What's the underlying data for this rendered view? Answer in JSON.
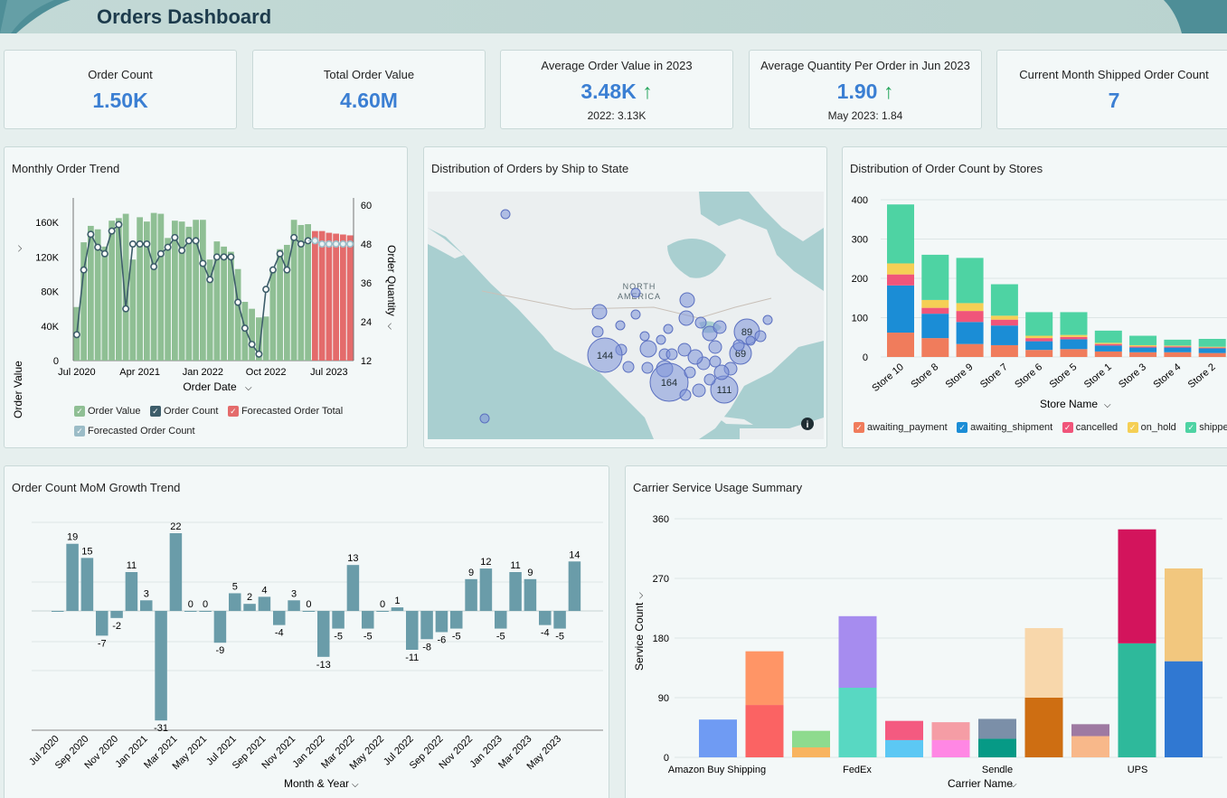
{
  "header": {
    "title": "Orders Dashboard"
  },
  "kpis": [
    {
      "label": "Order Count",
      "value": "1.50K"
    },
    {
      "label": "Total Order Value",
      "value": "4.60M"
    },
    {
      "label": "Average Order Value in 2023",
      "value": "3.48K",
      "trend": "↑",
      "comparison": "2022: 3.13K"
    },
    {
      "label": "Average Quantity Per Order in Jun 2023",
      "value": "1.90",
      "trend": "↑",
      "comparison": "May 2023: 1.84"
    },
    {
      "label": "Current Month Shipped Order Count",
      "value": "7"
    }
  ],
  "monthly": {
    "title": "Monthly Order Trend",
    "xlabel": "Order Date",
    "ylabel_left": "Order Value",
    "ylabel_right": "Order Quantity",
    "chevron": "⌵",
    "legend": [
      {
        "label": "Order Value",
        "color": "#8fbf94"
      },
      {
        "label": "Order Count",
        "color": "#3d5d6a"
      },
      {
        "label": "Forecasted Order Total",
        "color": "#e46b6b"
      },
      {
        "label": "Forecasted Order Count",
        "color": "#9bbcc7"
      }
    ]
  },
  "map": {
    "title": "Distribution of Orders by Ship to State",
    "region_label_1": "NORTH",
    "region_label_2": "AMERICA",
    "bubble_labels": [
      "144",
      "164",
      "111",
      "89",
      "69"
    ],
    "info_icon": "i"
  },
  "stores": {
    "title": "Distribution of Order Count by Stores",
    "xlabel": "Store Name",
    "legend": [
      {
        "label": "awaiting_payment",
        "color": "#f07c5c"
      },
      {
        "label": "awaiting_shipment",
        "color": "#1b8dd6"
      },
      {
        "label": "cancelled",
        "color": "#f0557a"
      },
      {
        "label": "on_hold",
        "color": "#f5cf55"
      },
      {
        "label": "shipped",
        "color": "#4ed3a3"
      }
    ]
  },
  "mom": {
    "title": "Order Count MoM Growth Trend",
    "xlabel": "Month & Year"
  },
  "carrier": {
    "title": "Carrier Service Usage Summary",
    "xlabel": "Carrier Name",
    "ylabel": "Service Count"
  },
  "chart_data": [
    {
      "type": "bar+line",
      "title": "Monthly Order Trend",
      "xlabel": "Order Date",
      "ylabel": "Order Value",
      "y2label": "Order Quantity",
      "ylim": [
        0,
        180000
      ],
      "y2lim": [
        12,
        60
      ],
      "y_ticks": [
        "0",
        "40K",
        "80K",
        "120K",
        "160K"
      ],
      "y2_ticks": [
        "12",
        "24",
        "36",
        "48",
        "60"
      ],
      "x_ticks": [
        "Jul 2020",
        "Apr 2021",
        "Jan 2022",
        "Oct 2022",
        "Jul 2023"
      ],
      "order_value": [
        62000,
        137000,
        156000,
        152000,
        132000,
        162000,
        165000,
        170000,
        117000,
        166000,
        161000,
        171000,
        170000,
        142000,
        162000,
        161000,
        155000,
        163000,
        163000,
        117000,
        138000,
        132000,
        126000,
        106000,
        68000,
        60000,
        50000,
        51000,
        104000,
        129000,
        134000,
        163000,
        157000,
        158000
      ],
      "order_count": [
        20,
        40,
        51,
        47,
        45,
        52,
        54,
        28,
        48,
        48,
        48,
        41,
        45,
        47,
        50,
        46,
        49,
        49,
        42,
        37,
        44,
        44,
        44,
        30,
        22,
        17,
        14,
        34,
        40,
        45,
        40,
        50,
        48,
        49
      ],
      "forecast_value": [
        150000,
        150000,
        148000,
        147000,
        146000,
        145000
      ],
      "forecast_count": [
        49,
        48,
        48,
        48,
        48,
        48
      ]
    },
    {
      "type": "bar",
      "stacked": true,
      "title": "Distribution of Order Count by Stores",
      "xlabel": "Store Name",
      "ylim": [
        0,
        400
      ],
      "y_ticks": [
        "0",
        "100",
        "200",
        "300",
        "400"
      ],
      "categories": [
        "Store 10",
        "Store 8",
        "Store 9",
        "Store 7",
        "Store 6",
        "Store 5",
        "Store 1",
        "Store 3",
        "Store 4",
        "Store 2"
      ],
      "series": [
        {
          "name": "awaiting_payment",
          "values": [
            62,
            48,
            33,
            30,
            18,
            20,
            14,
            12,
            12,
            10
          ]
        },
        {
          "name": "awaiting_shipment",
          "values": [
            120,
            62,
            56,
            50,
            22,
            25,
            15,
            12,
            12,
            12
          ]
        },
        {
          "name": "cancelled",
          "values": [
            28,
            15,
            28,
            15,
            8,
            6,
            4,
            3,
            3,
            2
          ]
        },
        {
          "name": "on_hold",
          "values": [
            28,
            20,
            20,
            10,
            6,
            5,
            3,
            3,
            2,
            2
          ]
        },
        {
          "name": "shipped",
          "values": [
            150,
            115,
            115,
            80,
            60,
            58,
            31,
            24,
            15,
            20
          ]
        }
      ]
    },
    {
      "type": "bar",
      "title": "Order Count MoM Growth Trend",
      "xlabel": "Month & Year",
      "ylim": [
        -35,
        28
      ],
      "x_ticks": [
        "Jul 2020",
        "Sep 2020",
        "Nov 2020",
        "Jan 2021",
        "Mar 2021",
        "May 2021",
        "Jul 2021",
        "Sep 2021",
        "Nov 2021",
        "Jan 2022",
        "Mar 2022",
        "May 2022",
        "Jul 2022",
        "Sep 2022",
        "Nov 2022",
        "Jan 2023",
        "Mar 2023",
        "May 2023"
      ],
      "values": [
        0,
        19,
        15,
        -7,
        -2,
        11,
        3,
        -31,
        22,
        0,
        0,
        -9,
        5,
        2,
        4,
        -4,
        3,
        0,
        -13,
        -5,
        13,
        -5,
        0,
        1,
        -11,
        -8,
        -6,
        -5,
        9,
        12,
        -5,
        11,
        9,
        -4,
        -5,
        14
      ],
      "labels": [
        "",
        "19",
        "15",
        "-7",
        "-2",
        "11",
        "3",
        "-31",
        "22",
        "0",
        "0",
        "-9",
        "5",
        "2",
        "4",
        "-4",
        "3",
        "0",
        "-13",
        "-5",
        "13",
        "-5",
        "0",
        "1",
        "-11",
        "-8",
        "-6",
        "-5",
        "9",
        "12",
        "-5",
        "11",
        "9",
        "-4",
        "-5",
        "14"
      ]
    },
    {
      "type": "bar",
      "stacked": true,
      "title": "Carrier Service Usage Summary",
      "xlabel": "Carrier Name",
      "ylabel": "Service Count",
      "ylim": [
        0,
        360
      ],
      "y_ticks": [
        "0",
        "90",
        "180",
        "270",
        "360"
      ],
      "x_ticks": [
        "Amazon Buy Shipping",
        "FedEx",
        "Sendle",
        "UPS"
      ],
      "bars": [
        {
          "segments": [
            {
              "value": 57,
              "color": "#6f9bf3"
            }
          ]
        },
        {
          "segments": [
            {
              "value": 79,
              "color": "#fb6363"
            },
            {
              "value": 81,
              "color": "#ff9566"
            }
          ]
        },
        {
          "segments": [
            {
              "value": 15,
              "color": "#f8b45f"
            },
            {
              "value": 25,
              "color": "#8edb8e"
            }
          ]
        },
        {
          "segments": [
            {
              "value": 105,
              "color": "#58d8c2"
            },
            {
              "value": 108,
              "color": "#a68cef"
            }
          ]
        },
        {
          "segments": [
            {
              "value": 26,
              "color": "#5cc8f4"
            },
            {
              "value": 29,
              "color": "#f45a80"
            }
          ]
        },
        {
          "segments": [
            {
              "value": 26,
              "color": "#ff87e4"
            },
            {
              "value": 27,
              "color": "#f59da5"
            }
          ]
        },
        {
          "segments": [
            {
              "value": 28,
              "color": "#069a86"
            },
            {
              "value": 30,
              "color": "#7b8fa8"
            }
          ]
        },
        {
          "segments": [
            {
              "value": 90,
              "color": "#ce6e12"
            },
            {
              "value": 105,
              "color": "#f8d7ab"
            }
          ]
        },
        {
          "segments": [
            {
              "value": 32,
              "color": "#f8b88a"
            },
            {
              "value": 18,
              "color": "#9e7aa2"
            }
          ]
        },
        {
          "segments": [
            {
              "value": 172,
              "color": "#2eb99b"
            },
            {
              "value": 172,
              "color": "#d3145c"
            }
          ]
        },
        {
          "segments": [
            {
              "value": 145,
              "color": "#3078d2"
            },
            {
              "value": 140,
              "color": "#f2c77e"
            }
          ]
        }
      ]
    }
  ]
}
